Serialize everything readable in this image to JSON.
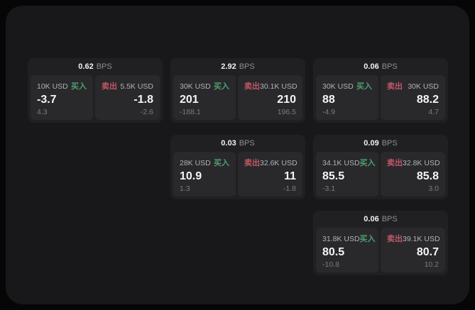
{
  "labels": {
    "bps_unit": "BPS",
    "buy": "买入",
    "sell": "卖出"
  },
  "colors": {
    "buy_accent": "#4f9e6e",
    "sell_accent": "#c25767",
    "window_bg": "#18181a",
    "card_bg": "#202022",
    "tile_bg": "#29292c"
  },
  "cards": [
    {
      "bps": "0.62",
      "buy": {
        "amount": "10K USD",
        "price": "-3.7",
        "sub": "4.3"
      },
      "sell": {
        "amount": "5.5K USD",
        "price": "-1.8",
        "sub": "-2.6"
      }
    },
    {
      "bps": "2.92",
      "buy": {
        "amount": "30K USD",
        "price": "201",
        "sub": "-188.1"
      },
      "sell": {
        "amount": "30.1K USD",
        "price": "210",
        "sub": "196.5"
      }
    },
    {
      "bps": "0.06",
      "buy": {
        "amount": "30K USD",
        "price": "88",
        "sub": "-4.9"
      },
      "sell": {
        "amount": "30K USD",
        "price": "88.2",
        "sub": "4.7"
      }
    },
    {
      "bps": "0.03",
      "buy": {
        "amount": "28K USD",
        "price": "10.9",
        "sub": "1.3"
      },
      "sell": {
        "amount": "32.6K USD",
        "price": "11",
        "sub": "-1.8"
      }
    },
    {
      "bps": "0.09",
      "buy": {
        "amount": "34.1K USD",
        "price": "85.5",
        "sub": "-3.1"
      },
      "sell": {
        "amount": "32.8K USD",
        "price": "85.8",
        "sub": "3.0"
      }
    },
    {
      "bps": "0.06",
      "buy": {
        "amount": "31.8K USD",
        "price": "80.5",
        "sub": "-10.8"
      },
      "sell": {
        "amount": "39.1K USD",
        "price": "80.7",
        "sub": "10.2"
      }
    }
  ]
}
